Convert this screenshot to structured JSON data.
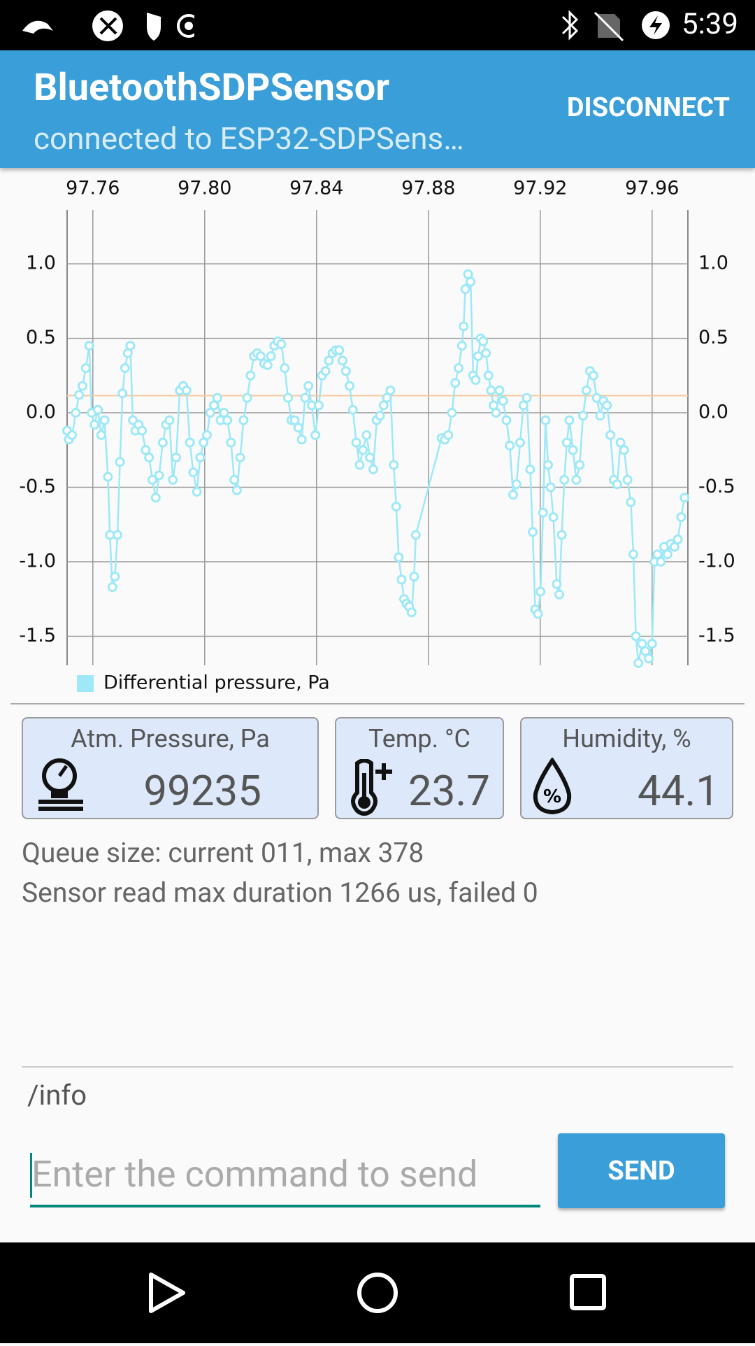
{
  "status_bar": {
    "time": "5:39"
  },
  "app_bar": {
    "title": "BluetoothSDPSensor",
    "subtitle": "connected to ESP32-SDPSens…",
    "action": "DISCONNECT"
  },
  "chart_data": {
    "type": "line",
    "x": [
      97.7508,
      97.7514,
      97.7526,
      97.7539,
      97.7551,
      97.7563,
      97.7575,
      97.7587,
      97.7596,
      97.7606,
      97.7618,
      97.763,
      97.7642,
      97.7654,
      97.7661,
      97.767,
      97.7679,
      97.7688,
      97.7697,
      97.7706,
      97.7715,
      97.7725,
      97.7734,
      97.7743,
      97.7752,
      97.7764,
      97.7776,
      97.7789,
      97.7801,
      97.7813,
      97.7825,
      97.7837,
      97.785,
      97.7862,
      97.7874,
      97.7886,
      97.7898,
      97.7911,
      97.7923,
      97.7935,
      97.7947,
      97.7959,
      97.7972,
      97.7984,
      97.7996,
      97.8008,
      97.802,
      97.8033,
      97.8045,
      97.8057,
      97.8069,
      97.8081,
      97.8094,
      97.8106,
      97.8115,
      97.8127,
      97.8139,
      97.8152,
      97.8164,
      97.8176,
      97.8188,
      97.82,
      97.8213,
      97.8225,
      97.8237,
      97.8249,
      97.8261,
      97.8274,
      97.8286,
      97.8298,
      97.831,
      97.8322,
      97.8335,
      97.8347,
      97.8359,
      97.8371,
      97.8383,
      97.8396,
      97.8408,
      97.842,
      97.8432,
      97.8444,
      97.8457,
      97.8469,
      97.8481,
      97.8493,
      97.8505,
      97.8518,
      97.853,
      97.8542,
      97.8554,
      97.8566,
      97.8579,
      97.8591,
      97.8603,
      97.8615,
      97.8627,
      97.864,
      97.8652,
      97.8664,
      97.8676,
      97.8685,
      97.8694,
      97.8704,
      97.8713,
      97.8722,
      97.8731,
      97.874,
      97.8749,
      97.8755,
      97.8847,
      97.8859,
      97.8871,
      97.8884,
      97.8896,
      97.8908,
      97.892,
      97.8926,
      97.8932,
      97.8942,
      97.8951,
      97.896,
      97.8969,
      97.8978,
      97.8987,
      97.8996,
      97.9006,
      97.9015,
      97.9024,
      97.9033,
      97.9042,
      97.9054,
      97.9067,
      97.9079,
      97.9091,
      97.9103,
      97.9115,
      97.9128,
      97.914,
      97.9152,
      97.9164,
      97.9173,
      97.9182,
      97.9192,
      97.9201,
      97.921,
      97.9219,
      97.9228,
      97.9237,
      97.9247,
      97.9259,
      97.9268,
      97.9277,
      97.9286,
      97.9295,
      97.9304,
      97.9317,
      97.9329,
      97.9341,
      97.9353,
      97.9365,
      97.9378,
      97.939,
      97.9402,
      97.9414,
      97.9426,
      97.9439,
      97.9451,
      97.9463,
      97.9475,
      97.9487,
      97.95,
      97.9512,
      97.9524,
      97.9533,
      97.9542,
      97.9551,
      97.9564,
      97.9576,
      97.9588,
      97.96,
      97.9609,
      97.9619,
      97.9631,
      97.9643,
      97.9655,
      97.9667,
      97.968,
      97.9692,
      97.9704,
      97.9716
    ],
    "series": [
      {
        "name": "Differential pressure, Pa",
        "color": "#9ee8f8",
        "values": [
          -0.12,
          -0.18,
          -0.15,
          0.0,
          0.12,
          0.18,
          0.3,
          0.45,
          0.0,
          -0.08,
          0.02,
          -0.15,
          -0.05,
          -0.43,
          -0.82,
          -1.17,
          -1.1,
          -0.82,
          -0.33,
          0.13,
          0.3,
          0.4,
          0.45,
          -0.05,
          -0.12,
          -0.08,
          -0.12,
          -0.25,
          -0.3,
          -0.45,
          -0.57,
          -0.42,
          -0.2,
          -0.08,
          -0.05,
          -0.45,
          -0.3,
          0.15,
          0.18,
          0.15,
          -0.2,
          -0.4,
          -0.53,
          -0.3,
          -0.2,
          -0.15,
          0.0,
          0.05,
          0.1,
          -0.05,
          0.0,
          -0.05,
          -0.2,
          -0.45,
          -0.52,
          -0.3,
          -0.05,
          0.1,
          0.25,
          0.38,
          0.4,
          0.38,
          0.33,
          0.32,
          0.38,
          0.45,
          0.48,
          0.46,
          0.3,
          0.1,
          -0.05,
          -0.05,
          -0.1,
          -0.18,
          0.1,
          0.18,
          0.05,
          -0.15,
          0.05,
          0.25,
          0.28,
          0.35,
          0.4,
          0.42,
          0.42,
          0.35,
          0.28,
          0.18,
          0.02,
          -0.2,
          -0.35,
          -0.25,
          -0.15,
          -0.3,
          -0.38,
          -0.05,
          -0.02,
          0.05,
          0.1,
          0.15,
          -0.35,
          -0.63,
          -0.97,
          -1.12,
          -1.25,
          -1.28,
          -1.3,
          -1.34,
          -1.1,
          -0.82,
          -0.17,
          -0.18,
          -0.15,
          0.0,
          0.2,
          0.3,
          0.45,
          0.58,
          0.83,
          0.93,
          0.88,
          0.25,
          0.22,
          0.38,
          0.5,
          0.48,
          0.4,
          0.25,
          0.15,
          0.05,
          0.0,
          0.15,
          0.08,
          -0.05,
          -0.22,
          -0.55,
          -0.48,
          -0.2,
          0.05,
          0.1,
          -0.38,
          -0.8,
          -1.32,
          -1.35,
          -1.2,
          -0.67,
          -0.05,
          -0.35,
          -0.5,
          -0.7,
          -1.15,
          -1.22,
          -0.82,
          -0.45,
          -0.2,
          -0.05,
          -0.25,
          -0.45,
          -0.35,
          -0.02,
          0.15,
          0.28,
          0.25,
          0.1,
          -0.02,
          0.08,
          0.05,
          -0.15,
          -0.45,
          -0.48,
          -0.2,
          -0.25,
          -0.45,
          -0.6,
          -0.95,
          -1.5,
          -1.68,
          -1.55,
          -1.6,
          -1.65,
          -1.55,
          -1.0,
          -0.95,
          -1.0,
          -0.9,
          -0.95,
          -0.88,
          -0.9,
          -0.85,
          -0.7,
          -0.57
        ]
      }
    ],
    "xlim": [
      97.7508,
      97.9728
    ],
    "xticks": [
      97.76,
      {
        "value": 97.8,
        "label": "97.80"
      },
      97.84,
      97.88,
      97.92,
      97.96
    ],
    "ylim": [
      -1.695,
      1.362
    ],
    "yticks": [
      {
        "value": 1,
        "label": "1.0"
      },
      0.5,
      {
        "value": 0,
        "label": "0.0"
      },
      -0.5,
      {
        "value": -1,
        "label": "-1.0"
      },
      -1.5
    ],
    "reference_line": {
      "value": 0.115,
      "color": "#f8c9a0"
    },
    "grid": true,
    "legend": "bottom-left"
  },
  "sensors": [
    {
      "label": "Atm. Pressure, Pa",
      "value": 99235
    },
    {
      "label": "Temp. °C",
      "value": 23.7
    },
    {
      "label": "Humidity, %",
      "value": 44.1
    }
  ],
  "status_lines": [
    "Queue size: current 011, max 378",
    "Sensor read max duration 1266 us, failed 0"
  ],
  "log": "/info",
  "input": {
    "placeholder": "Enter the command to send"
  },
  "send_button": "SEND"
}
